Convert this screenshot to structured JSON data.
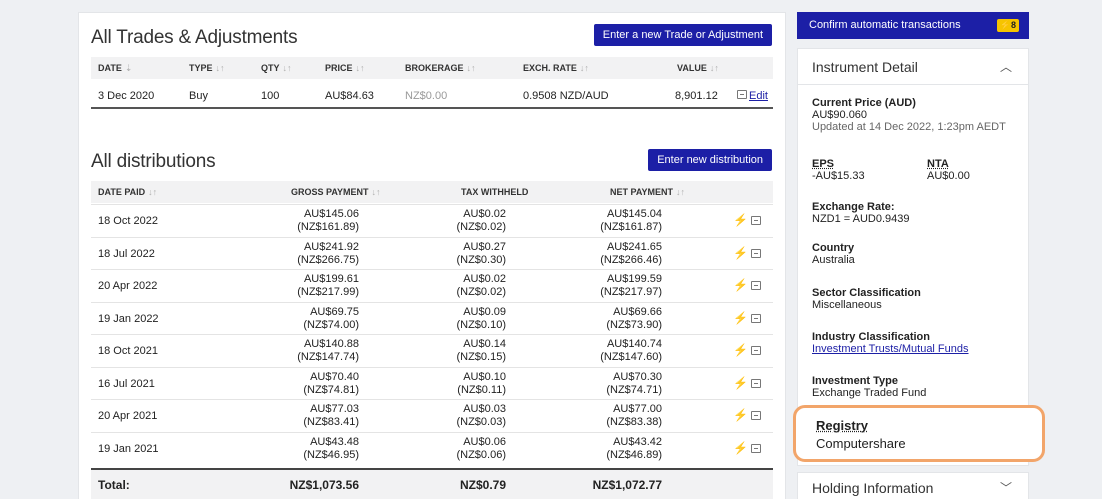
{
  "trades": {
    "title": "All Trades & Adjustments",
    "button": "Enter a new Trade or Adjustment",
    "headers": [
      "DATE",
      "TYPE",
      "QTY",
      "PRICE",
      "BROKERAGE",
      "EXCH. RATE",
      "VALUE"
    ],
    "row": {
      "date": "3 Dec 2020",
      "type": "Buy",
      "qty": "100",
      "price": "AU$84.63",
      "brokerage": "NZ$0.00",
      "exch_rate": "0.9508 NZD/AUD",
      "value": "8,901.12",
      "edit": "Edit"
    }
  },
  "distributions": {
    "title": "All distributions",
    "button": "Enter new distribution",
    "headers": [
      "DATE PAID",
      "GROSS PAYMENT",
      "TAX WITHHELD",
      "NET PAYMENT"
    ],
    "rows": [
      {
        "date": "18 Oct 2022",
        "gross": "AU$145.06",
        "gross_nz": "(NZ$161.89)",
        "tax": "AU$0.02",
        "tax_nz": "(NZ$0.02)",
        "net": "AU$145.04",
        "net_nz": "(NZ$161.87)"
      },
      {
        "date": "18 Jul 2022",
        "gross": "AU$241.92",
        "gross_nz": "(NZ$266.75)",
        "tax": "AU$0.27",
        "tax_nz": "(NZ$0.30)",
        "net": "AU$241.65",
        "net_nz": "(NZ$266.46)"
      },
      {
        "date": "20 Apr 2022",
        "gross": "AU$199.61",
        "gross_nz": "(NZ$217.99)",
        "tax": "AU$0.02",
        "tax_nz": "(NZ$0.02)",
        "net": "AU$199.59",
        "net_nz": "(NZ$217.97)"
      },
      {
        "date": "19 Jan 2022",
        "gross": "AU$69.75",
        "gross_nz": "(NZ$74.00)",
        "tax": "AU$0.09",
        "tax_nz": "(NZ$0.10)",
        "net": "AU$69.66",
        "net_nz": "(NZ$73.90)"
      },
      {
        "date": "18 Oct 2021",
        "gross": "AU$140.88",
        "gross_nz": "(NZ$147.74)",
        "tax": "AU$0.14",
        "tax_nz": "(NZ$0.15)",
        "net": "AU$140.74",
        "net_nz": "(NZ$147.60)"
      },
      {
        "date": "16 Jul 2021",
        "gross": "AU$70.40",
        "gross_nz": "(NZ$74.81)",
        "tax": "AU$0.10",
        "tax_nz": "(NZ$0.11)",
        "net": "AU$70.30",
        "net_nz": "(NZ$74.71)"
      },
      {
        "date": "20 Apr 2021",
        "gross": "AU$77.03",
        "gross_nz": "(NZ$83.41)",
        "tax": "AU$0.03",
        "tax_nz": "(NZ$0.03)",
        "net": "AU$77.00",
        "net_nz": "(NZ$83.38)"
      },
      {
        "date": "19 Jan 2021",
        "gross": "AU$43.48",
        "gross_nz": "(NZ$46.95)",
        "tax": "AU$0.06",
        "tax_nz": "(NZ$0.06)",
        "net": "AU$43.42",
        "net_nz": "(NZ$46.89)"
      }
    ],
    "total": {
      "label": "Total:",
      "gross": "NZ$1,073.56",
      "tax": "NZ$0.79",
      "net": "NZ$1,072.77"
    }
  },
  "sidebar": {
    "confirm_label": "Confirm automatic transactions",
    "confirm_badge": "8",
    "instrument_title": "Instrument Detail",
    "current_price_label": "Current Price (AUD)",
    "current_price": "AU$90.060",
    "updated": "Updated at 14 Dec 2022, 1:23pm AEDT",
    "eps_label": "EPS",
    "eps": "-AU$15.33",
    "nta_label": "NTA",
    "nta": "AU$0.00",
    "exchange_label": "Exchange Rate:",
    "exchange": "NZD1 = AUD0.9439",
    "country_label": "Country",
    "country": "Australia",
    "sector_label": "Sector Classification",
    "sector": "Miscellaneous",
    "industry_label": "Industry Classification",
    "industry": "Investment Trusts/Mutual Funds",
    "type_label": "Investment Type",
    "type": "Exchange Traded Fund",
    "registry_label": "Registry",
    "registry": "Computershare",
    "holding_title": "Holding Information"
  },
  "colors": {
    "accent": "#1c1fa6",
    "highlight": "#f2a56a",
    "bolt": "#f0b400"
  }
}
